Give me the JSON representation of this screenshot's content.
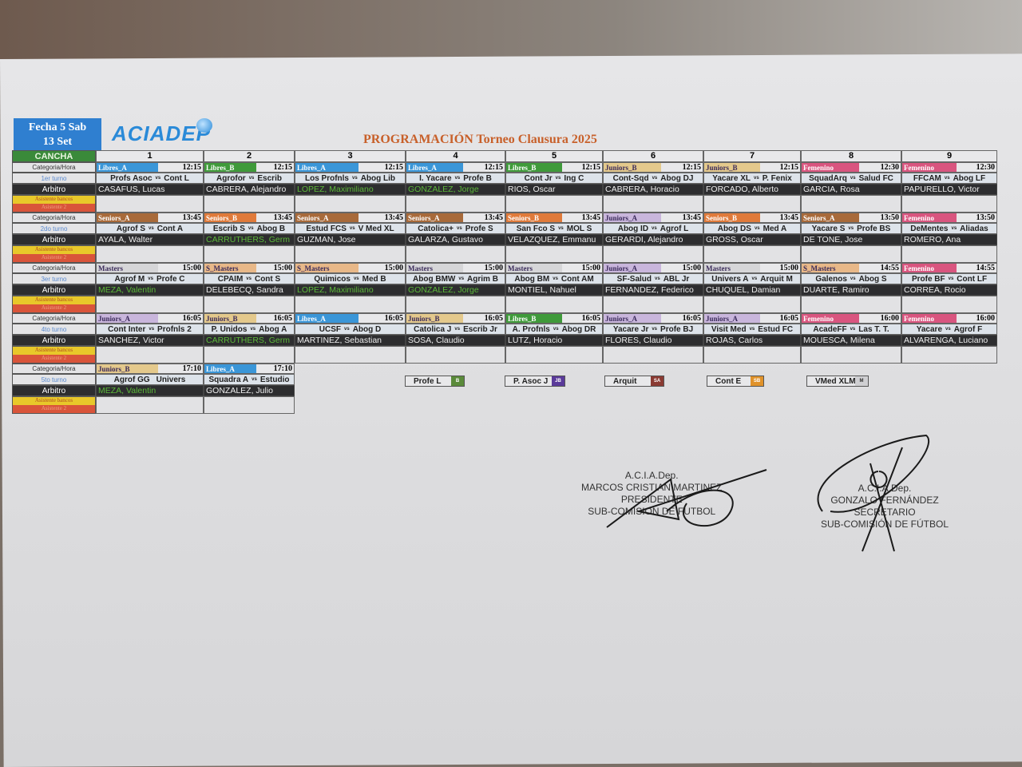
{
  "header": {
    "fecha_line1": "Fecha 5   Sab",
    "fecha_line2": "13 Set",
    "logo_text": "ACIADEP",
    "title": "PROGRAMACIÓN Torneo Clausura 2025"
  },
  "labels": {
    "cancha": "CANCHA",
    "categoria_hora": "Categoria/Hora",
    "arbitro": "Arbitro",
    "asistente_1": "Asistente bancos",
    "asistente_2": "Asistente 2",
    "vs": "vs"
  },
  "courts": [
    "1",
    "2",
    "3",
    "4",
    "5",
    "6",
    "7",
    "8",
    "9"
  ],
  "category_colors": {
    "Libres_A": "#3a96d8",
    "Libres_B": "#3f9a3a",
    "Juniors_A": "#c9b6dc",
    "Juniors_B": "#e4c98c",
    "Seniors_A": "#a86a3a",
    "Seniors_B": "#e07a3a",
    "Femenino": "#d9557f",
    "Masters": "#d6d6d8",
    "S_Masters": "#e8b888"
  },
  "highlight_referee_color": "#5cb83a",
  "turnos": [
    {
      "label": "1er turno",
      "matches": [
        {
          "category": "Libres_A",
          "time": "12:15",
          "home": "Profs Asoc",
          "away": "Cont L",
          "referee": "CASAFUS, Lucas"
        },
        {
          "category": "Libres_B",
          "time": "12:15",
          "home": "Agrofor",
          "away": "Escrib",
          "referee": "CABRERA, Alejandro"
        },
        {
          "category": "Libres_A",
          "time": "12:15",
          "home": "Los Profnls",
          "away": "Abog Lib",
          "referee": "LOPEZ, Maximiliano",
          "referee_highlight": true
        },
        {
          "category": "Libres_A",
          "time": "12:15",
          "home": "I. Yacare",
          "away": "Profe B",
          "referee": "GONZALEZ, Jorge",
          "referee_highlight": true
        },
        {
          "category": "Libres_B",
          "time": "12:15",
          "home": "Cont Jr",
          "away": "Ing C",
          "referee": "RIOS, Oscar"
        },
        {
          "category": "Juniors_B",
          "time": "12:15",
          "home": "Cont-Sqd",
          "away": "Abog DJ",
          "referee": "CABRERA, Horacio"
        },
        {
          "category": "Juniors_B",
          "time": "12:15",
          "home": "Yacare XL",
          "away": "P. Fenix",
          "referee": "FORCADO, Alberto"
        },
        {
          "category": "Femenino",
          "time": "12:30",
          "home": "SquadArq",
          "away": "Salud FC",
          "referee": "GARCIA, Rosa"
        },
        {
          "category": "Femenino",
          "time": "12:30",
          "home": "FFCAM",
          "away": "Abog LF",
          "referee": "PAPURELLO, Victor"
        }
      ]
    },
    {
      "label": "2do turno",
      "matches": [
        {
          "category": "Seniors_A",
          "time": "13:45",
          "home": "Agrof S",
          "away": "Cont A",
          "referee": "AYALA, Walter"
        },
        {
          "category": "Seniors_B",
          "time": "13:45",
          "home": "Escrib S",
          "away": "Abog B",
          "referee": "CARRUTHERS, Germ",
          "referee_highlight": true
        },
        {
          "category": "Seniors_A",
          "time": "13:45",
          "home": "Estud FCS",
          "away": "V Med XL",
          "referee": "GUZMAN, Jose"
        },
        {
          "category": "Seniors_A",
          "time": "13:45",
          "home": "Catolica+",
          "away": "Profe S",
          "referee": "GALARZA, Gustavo"
        },
        {
          "category": "Seniors_B",
          "time": "13:45",
          "home": "San Fco S",
          "away": "MOL S",
          "referee": "VELAZQUEZ, Emmanu"
        },
        {
          "category": "Juniors_A",
          "time": "13:45",
          "home": "Abog ID",
          "away": "Agrof L",
          "referee": "GERARDI, Alejandro"
        },
        {
          "category": "Seniors_B",
          "time": "13:45",
          "home": "Abog DS",
          "away": "Med A",
          "referee": "GROSS, Oscar"
        },
        {
          "category": "Seniors_A",
          "time": "13:50",
          "home": "Yacare S",
          "away": "Profe BS",
          "referee": "DE TONE, Jose"
        },
        {
          "category": "Femenino",
          "time": "13:50",
          "home": "DeMentes",
          "away": "Aliadas",
          "referee": "ROMERO, Ana"
        }
      ]
    },
    {
      "label": "3er turno",
      "matches": [
        {
          "category": "Masters",
          "time": "15:00",
          "home": "Agrof M",
          "away": "Profe C",
          "referee": "MEZA, Valentin",
          "referee_highlight": true
        },
        {
          "category": "S_Masters",
          "time": "15:00",
          "home": "CPAIM",
          "away": "Cont S",
          "referee": "DELEBECQ, Sandra"
        },
        {
          "category": "S_Masters",
          "time": "15:00",
          "home": "Quimicos",
          "away": "Med B",
          "referee": "LOPEZ, Maximiliano",
          "referee_highlight": true
        },
        {
          "category": "Masters",
          "time": "15:00",
          "home": "Abog BMW",
          "away": "Agrim B",
          "referee": "GONZALEZ, Jorge",
          "referee_highlight": true
        },
        {
          "category": "Masters",
          "time": "15:00",
          "home": "Abog BM",
          "away": "Cont AM",
          "referee": "MONTIEL, Nahuel"
        },
        {
          "category": "Juniors_A",
          "time": "15:00",
          "home": "SF-Salud",
          "away": "ABL Jr",
          "referee": "FERNANDEZ, Federico"
        },
        {
          "category": "Masters",
          "time": "15:00",
          "home": "Univers A",
          "away": "Arquit M",
          "referee": "CHUQUEL, Damian"
        },
        {
          "category": "S_Masters",
          "time": "14:55",
          "home": "Galenos",
          "away": "Abog S",
          "referee": "DUARTE, Ramiro"
        },
        {
          "category": "Femenino",
          "time": "14:55",
          "home": "Profe BF",
          "away": "Cont LF",
          "referee": "CORREA, Rocio"
        }
      ]
    },
    {
      "label": "4to turno",
      "matches": [
        {
          "category": "Juniors_A",
          "time": "16:05",
          "home": "Cont Inter",
          "away": "Profnls 2",
          "referee": "SANCHEZ, Victor"
        },
        {
          "category": "Juniors_B",
          "time": "16:05",
          "home": "P. Unidos",
          "away": "Abog A",
          "referee": "CARRUTHERS, Germ",
          "referee_highlight": true
        },
        {
          "category": "Libres_A",
          "time": "16:05",
          "home": "UCSF",
          "away": "Abog D",
          "referee": "MARTINEZ, Sebastian"
        },
        {
          "category": "Juniors_B",
          "time": "16:05",
          "home": "Catolica J",
          "away": "Escrib Jr",
          "referee": "SOSA, Claudio"
        },
        {
          "category": "Libres_B",
          "time": "16:05",
          "home": "A. Profnls",
          "away": "Abog DR",
          "referee": "LUTZ, Horacio"
        },
        {
          "category": "Juniors_A",
          "time": "16:05",
          "home": "Yacare Jr",
          "away": "Profe BJ",
          "referee": "FLORES, Claudio"
        },
        {
          "category": "Juniors_A",
          "time": "16:05",
          "home": "Visit Med",
          "away": "Estud FC",
          "referee": "ROJAS, Carlos"
        },
        {
          "category": "Femenino",
          "time": "16:00",
          "home": "AcadeFF",
          "away": "Las T. T.",
          "referee": "MOUESCA, Milena"
        },
        {
          "category": "Femenino",
          "time": "16:00",
          "home": "Yacare",
          "away": "Agrof F",
          "referee": "ALVARENGA, Luciano"
        }
      ]
    },
    {
      "label": "5to turno",
      "matches": [
        {
          "category": "Juniors_B",
          "time": "17:10",
          "home": "Agrof GG",
          "away": "Univers",
          "referee": "MEZA, Valentin",
          "referee_highlight": true,
          "no_vs": true
        },
        {
          "category": "Libres_A",
          "time": "17:10",
          "home": "Squadra A",
          "away": "Estudio",
          "referee": "GONZALEZ, Julio"
        }
      ]
    }
  ],
  "legend": [
    {
      "team": "Profe L",
      "badge": "B",
      "color": "#5a8a3a"
    },
    {
      "team": "P. Asoc J",
      "badge": "JB",
      "color": "#5a3a9a"
    },
    {
      "team": "Arquit",
      "badge": "SA",
      "color": "#8a3a32"
    },
    {
      "team": "Cont E",
      "badge": "SB",
      "color": "#e0922a"
    },
    {
      "team": "VMed XLM",
      "badge": "M",
      "color": "#cfcfd2"
    }
  ],
  "signatures": [
    {
      "org": "A.C.I.A.Dep.",
      "name": "MARCOS CRISTIAN MARTINEZ",
      "role": "PRESIDENTE",
      "dept": "SUB-COMISION DE FUTBOL"
    },
    {
      "org": "A.C.I.A.Dep.",
      "name": "GONZALO FERNÁNDEZ",
      "role": "SECRETARIO",
      "dept": "SUB-COMISIÓN DE FÚTBOL"
    }
  ]
}
